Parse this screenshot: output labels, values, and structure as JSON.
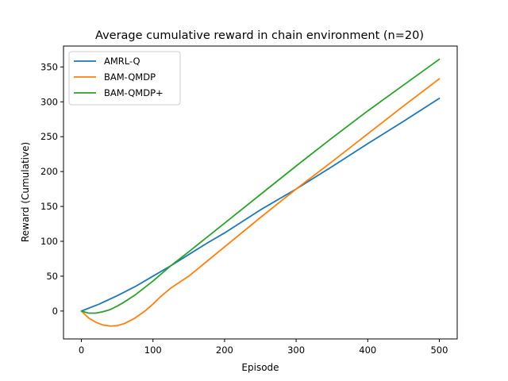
{
  "chart_data": {
    "type": "line",
    "title": "Average cumulative reward in chain environment (n=20)",
    "xlabel": "Episode",
    "ylabel": "Reward (Cumulative)",
    "xlim": [
      -25,
      525
    ],
    "ylim": [
      -40,
      380
    ],
    "xticks": [
      0,
      100,
      200,
      300,
      400,
      500
    ],
    "yticks": [
      0,
      50,
      100,
      150,
      200,
      250,
      300,
      350
    ],
    "legend_position": "upper-left",
    "grid": false,
    "series": [
      {
        "name": "AMRL-Q",
        "color": "#1f77b4",
        "x": [
          0,
          25,
          50,
          75,
          100,
          125,
          150,
          175,
          200,
          250,
          300,
          350,
          400,
          450,
          500
        ],
        "y": [
          0,
          10,
          22,
          35,
          50,
          65,
          81,
          97,
          112,
          145,
          175,
          207,
          240,
          272,
          305
        ]
      },
      {
        "name": "BAM-QMDP",
        "color": "#ff7f0e",
        "x": [
          0,
          10,
          20,
          30,
          40,
          50,
          60,
          75,
          90,
          100,
          110,
          125,
          150,
          200,
          250,
          300,
          350,
          400,
          450,
          500
        ],
        "y": [
          0,
          -10,
          -16,
          -20,
          -21.5,
          -21,
          -18,
          -10,
          1,
          10,
          20,
          33,
          50,
          92,
          134,
          175,
          214,
          254,
          294,
          333
        ]
      },
      {
        "name": "BAM-QMDP+",
        "color": "#2ca02c",
        "x": [
          0,
          10,
          20,
          30,
          40,
          50,
          60,
          75,
          100,
          125,
          150,
          200,
          250,
          300,
          350,
          400,
          450,
          500
        ],
        "y": [
          0,
          -3,
          -3,
          -1,
          2,
          7,
          13,
          23,
          43,
          65,
          85,
          126,
          167,
          208,
          248,
          287,
          324,
          361
        ]
      }
    ]
  }
}
